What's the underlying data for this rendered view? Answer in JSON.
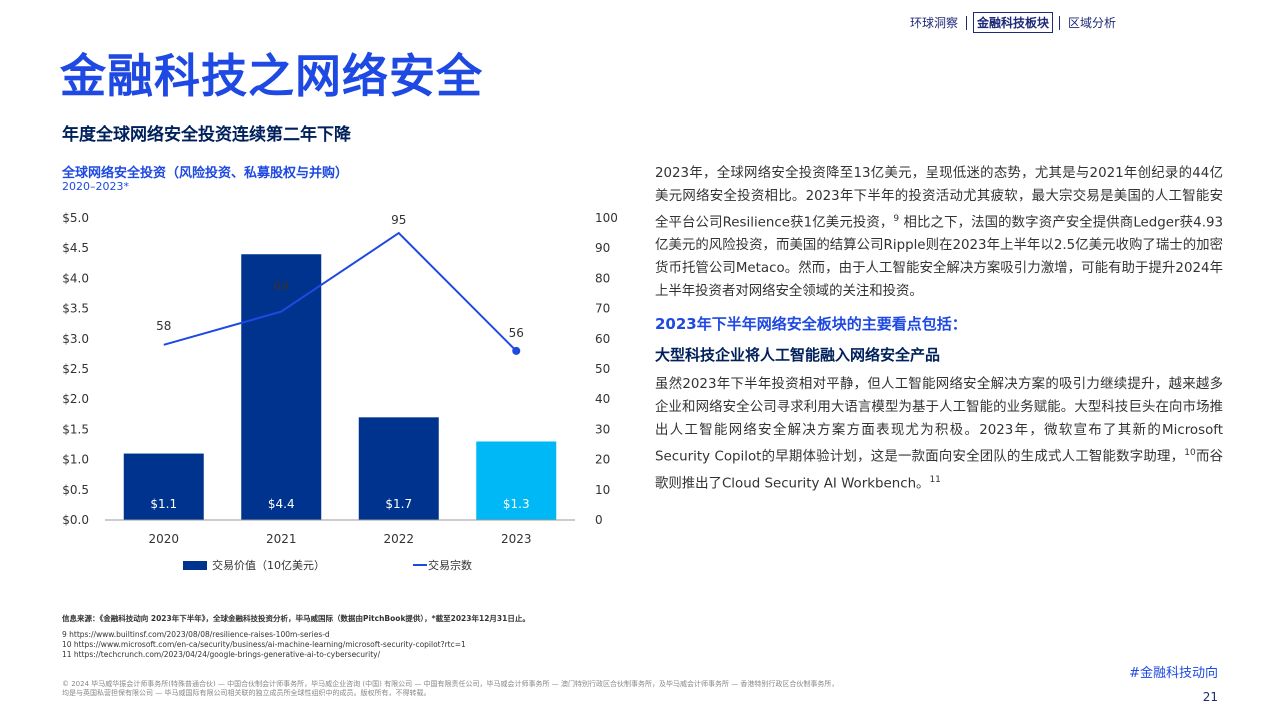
{
  "nav": {
    "items": [
      "环球洞察",
      "金融科技板块",
      "区域分析"
    ],
    "active_index": 1
  },
  "page_title": "金融科技之网络安全",
  "section_title": "年度全球网络安全投资连续第二年下降",
  "chart_data": {
    "type": "bar+line",
    "title": "全球网络安全投资（风险投资、私募股权与并购）",
    "subtitle": "2020–2023*",
    "categories": [
      "2020",
      "2021",
      "2022",
      "2023"
    ],
    "bars": {
      "name": "交易价值（10亿美元）",
      "values": [
        1.1,
        4.4,
        1.7,
        1.3
      ],
      "labels": [
        "$1.1",
        "$4.4",
        "$1.7",
        "$1.3"
      ],
      "colors": [
        "#00338d",
        "#00338d",
        "#00338d",
        "#00b8f5"
      ]
    },
    "line": {
      "name": "交易宗数",
      "values": [
        58,
        69,
        95,
        56
      ],
      "color": "#1e49e2"
    },
    "y_left": {
      "min": 0,
      "max": 5,
      "ticks": [
        "$0.0",
        "$0.5",
        "$1.0",
        "$1.5",
        "$2.0",
        "$2.5",
        "$3.0",
        "$3.5",
        "$4.0",
        "$4.5",
        "$5.0"
      ]
    },
    "y_right": {
      "min": 0,
      "max": 100,
      "ticks": [
        "0",
        "10",
        "20",
        "30",
        "40",
        "50",
        "60",
        "70",
        "80",
        "90",
        "100"
      ]
    },
    "legend_position": "bottom"
  },
  "body": {
    "para1_parts": [
      "2023年，全球网络安全投资降至13亿美元，呈现低迷的态势，尤其是与2021年创纪录的44亿美元网络安全投资相比。2023年下半年的投资活动尤其疲软，最大宗交易是美国的人工智能安全平台公司Resilience获1亿美元投资，",
      "9",
      " 相比之下，法国的数字资产安全提供商Ledger获4.93亿美元的风险投资，而美国的结算公司Ripple则在2023年上半年以2.5亿美元收购了瑞士的加密货币托管公司Metaco。然而，由于人工智能安全解决方案吸引力激增，可能有助于提升2024年上半年投资者对网络安全领域的关注和投资。"
    ],
    "highlight_heading": "2023年下半年网络安全板块的主要看点包括：",
    "sub_heading": "大型科技企业将人工智能融入网络安全产品",
    "para2_parts": [
      "虽然2023年下半年投资相对平静，但人工智能网络安全解决方案的吸引力继续提升，越来越多企业和网络安全公司寻求利用大语言模型为基于人工智能的业务赋能。大型科技巨头在向市场推出人工智能网络安全解决方案方面表现尤为积极。2023年，微软宣布了其新的Microsoft Security Copilot的早期体验计划，这是一款面向安全团队的生成式人工智能数字助理，",
      "10",
      "而谷歌则推出了Cloud Security AI Workbench。",
      "11"
    ]
  },
  "sources": {
    "main": "信息来源：《金融科技动向 2023年下半年》，全球金融科技投资分析，毕马威国际（数据由PitchBook提供），*截至2023年12月31日止。",
    "refs": [
      "9 https://www.builtinsf.com/2023/08/08/resilience-raises-100m-series-d",
      "10 https://www.microsoft.com/en-ca/security/business/ai-machine-learning/microsoft-security-copilot?rtc=1",
      "11 https://techcrunch.com/2023/04/24/google-brings-generative-ai-to-cybersecurity/"
    ]
  },
  "hashtag": "#金融科技动向",
  "copyright": "© 2024 毕马威华振会计师事务所(特殊普通合伙) — 中国合伙制会计师事务所，毕马威企业咨询 (中国) 有限公司 — 中国有限责任公司，毕马威会计师事务所 — 澳门特别行政区合伙制事务所，及毕马威会计师事务所 — 香港特别行政区合伙制事务所，均是与英国私营担保有限公司 — 毕马威国际有限公司相关联的独立成员所全球性组织中的成员。版权所有，不得转载。",
  "page_number": "21"
}
